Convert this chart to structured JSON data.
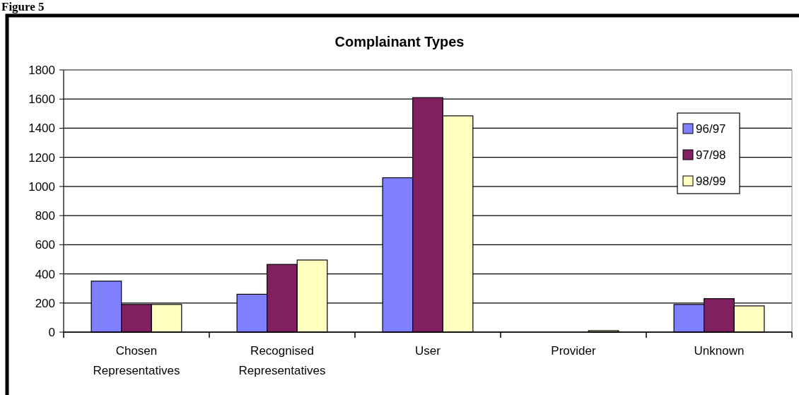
{
  "chart_data": {
    "type": "bar",
    "title": "Complainant Types",
    "annotations": [
      "Figure 5"
    ],
    "categories": [
      "Chosen Representatives",
      "Recognised Representatives",
      "User",
      "Provider",
      "Unknown"
    ],
    "series": [
      {
        "name": "96/97",
        "color": "#8080ff",
        "values": [
          350,
          260,
          1060,
          0,
          190
        ]
      },
      {
        "name": "97/98",
        "color": "#802060",
        "values": [
          190,
          465,
          1610,
          0,
          230
        ]
      },
      {
        "name": "98/99",
        "color": "#ffffc0",
        "values": [
          190,
          495,
          1485,
          10,
          180
        ]
      }
    ],
    "ylim": [
      0,
      1800
    ],
    "yticks": [
      0,
      200,
      400,
      600,
      800,
      1000,
      1200,
      1400,
      1600,
      1800
    ],
    "grid": "y",
    "legend": "top right"
  }
}
